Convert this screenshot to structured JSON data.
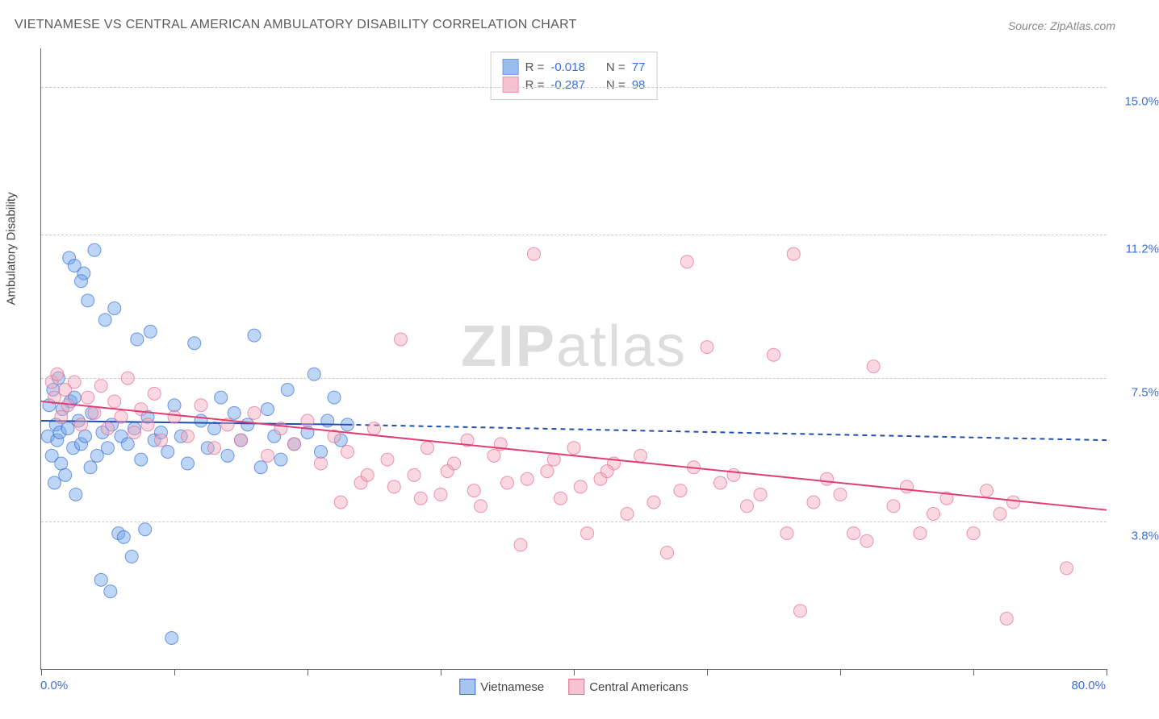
{
  "title": "VIETNAMESE VS CENTRAL AMERICAN AMBULATORY DISABILITY CORRELATION CHART",
  "source": "Source: ZipAtlas.com",
  "ylabel": "Ambulatory Disability",
  "watermark": {
    "part1": "ZIP",
    "part2": "atlas"
  },
  "chart": {
    "type": "scatter",
    "xlim": [
      0,
      80
    ],
    "ylim": [
      0,
      16
    ],
    "yticks": [
      {
        "v": 3.8,
        "label": "3.8%"
      },
      {
        "v": 7.5,
        "label": "7.5%"
      },
      {
        "v": 11.2,
        "label": "11.2%"
      },
      {
        "v": 15.0,
        "label": "15.0%"
      }
    ],
    "xticks": [
      0,
      10,
      20,
      30,
      40,
      50,
      60,
      70,
      80
    ],
    "x_left_label": "0.0%",
    "x_right_label": "80.0%",
    "background_color": "#ffffff",
    "grid_color": "#cccccc",
    "marker_radius": 8,
    "marker_opacity": 0.45,
    "series": [
      {
        "name": "Vietnamese",
        "color": "#6ea3e8",
        "stroke": "#3b6fd8",
        "R": "-0.018",
        "N": "77",
        "trend": {
          "x1": 0,
          "y1": 6.4,
          "x2": 23,
          "y2": 6.3,
          "dash_x2": 80,
          "dash_y2": 5.9,
          "color": "#1f4fb0",
          "width": 2
        },
        "points": [
          [
            0.5,
            6.0
          ],
          [
            0.6,
            6.8
          ],
          [
            0.8,
            5.5
          ],
          [
            0.9,
            7.2
          ],
          [
            1.0,
            4.8
          ],
          [
            1.1,
            6.3
          ],
          [
            1.2,
            5.9
          ],
          [
            1.3,
            7.5
          ],
          [
            1.4,
            6.1
          ],
          [
            1.5,
            5.3
          ],
          [
            1.6,
            6.7
          ],
          [
            1.8,
            5.0
          ],
          [
            2.0,
            6.2
          ],
          [
            2.1,
            10.6
          ],
          [
            2.2,
            6.9
          ],
          [
            2.4,
            5.7
          ],
          [
            2.5,
            7.0
          ],
          [
            2.6,
            4.5
          ],
          [
            2.8,
            6.4
          ],
          [
            3.0,
            5.8
          ],
          [
            3.2,
            10.2
          ],
          [
            3.3,
            6.0
          ],
          [
            3.5,
            9.5
          ],
          [
            3.7,
            5.2
          ],
          [
            3.8,
            6.6
          ],
          [
            4.0,
            10.8
          ],
          [
            4.2,
            5.5
          ],
          [
            4.5,
            2.3
          ],
          [
            4.6,
            6.1
          ],
          [
            4.8,
            9.0
          ],
          [
            5.0,
            5.7
          ],
          [
            5.2,
            2.0
          ],
          [
            5.3,
            6.3
          ],
          [
            5.5,
            9.3
          ],
          [
            5.8,
            3.5
          ],
          [
            6.0,
            6.0
          ],
          [
            6.2,
            3.4
          ],
          [
            6.5,
            5.8
          ],
          [
            6.8,
            2.9
          ],
          [
            7.0,
            6.2
          ],
          [
            7.2,
            8.5
          ],
          [
            7.5,
            5.4
          ],
          [
            7.8,
            3.6
          ],
          [
            8.0,
            6.5
          ],
          [
            8.2,
            8.7
          ],
          [
            8.5,
            5.9
          ],
          [
            9.0,
            6.1
          ],
          [
            9.5,
            5.6
          ],
          [
            9.8,
            0.8
          ],
          [
            10.0,
            6.8
          ],
          [
            10.5,
            6.0
          ],
          [
            11.0,
            5.3
          ],
          [
            11.5,
            8.4
          ],
          [
            12.0,
            6.4
          ],
          [
            12.5,
            5.7
          ],
          [
            13.0,
            6.2
          ],
          [
            13.5,
            7.0
          ],
          [
            14.0,
            5.5
          ],
          [
            14.5,
            6.6
          ],
          [
            15.0,
            5.9
          ],
          [
            15.5,
            6.3
          ],
          [
            16.0,
            8.6
          ],
          [
            16.5,
            5.2
          ],
          [
            17.0,
            6.7
          ],
          [
            17.5,
            6.0
          ],
          [
            18.0,
            5.4
          ],
          [
            18.5,
            7.2
          ],
          [
            19.0,
            5.8
          ],
          [
            20.0,
            6.1
          ],
          [
            20.5,
            7.6
          ],
          [
            21.0,
            5.6
          ],
          [
            21.5,
            6.4
          ],
          [
            22.0,
            7.0
          ],
          [
            22.5,
            5.9
          ],
          [
            23.0,
            6.3
          ],
          [
            2.5,
            10.4
          ],
          [
            3.0,
            10.0
          ]
        ]
      },
      {
        "name": "Central Americans",
        "color": "#f4a8bd",
        "stroke": "#e66b91",
        "R": "-0.287",
        "N": "98",
        "trend": {
          "x1": 0,
          "y1": 6.9,
          "x2": 80,
          "y2": 4.1,
          "color": "#e03e72",
          "width": 2
        },
        "points": [
          [
            0.8,
            7.4
          ],
          [
            1.0,
            7.0
          ],
          [
            1.2,
            7.6
          ],
          [
            1.5,
            6.5
          ],
          [
            1.8,
            7.2
          ],
          [
            2.0,
            6.8
          ],
          [
            2.5,
            7.4
          ],
          [
            3.0,
            6.3
          ],
          [
            3.5,
            7.0
          ],
          [
            4.0,
            6.6
          ],
          [
            4.5,
            7.3
          ],
          [
            5.0,
            6.2
          ],
          [
            5.5,
            6.9
          ],
          [
            6.0,
            6.5
          ],
          [
            6.5,
            7.5
          ],
          [
            7.0,
            6.1
          ],
          [
            7.5,
            6.7
          ],
          [
            8.0,
            6.3
          ],
          [
            8.5,
            7.1
          ],
          [
            9.0,
            5.9
          ],
          [
            10.0,
            6.5
          ],
          [
            11.0,
            6.0
          ],
          [
            12.0,
            6.8
          ],
          [
            13.0,
            5.7
          ],
          [
            14.0,
            6.3
          ],
          [
            15.0,
            5.9
          ],
          [
            16.0,
            6.6
          ],
          [
            17.0,
            5.5
          ],
          [
            18.0,
            6.2
          ],
          [
            19.0,
            5.8
          ],
          [
            20.0,
            6.4
          ],
          [
            21.0,
            5.3
          ],
          [
            22.0,
            6.0
          ],
          [
            23.0,
            5.6
          ],
          [
            24.0,
            4.8
          ],
          [
            25.0,
            6.2
          ],
          [
            26.0,
            5.4
          ],
          [
            27.0,
            8.5
          ],
          [
            28.0,
            5.0
          ],
          [
            29.0,
            5.7
          ],
          [
            30.0,
            4.5
          ],
          [
            31.0,
            5.3
          ],
          [
            32.0,
            5.9
          ],
          [
            33.0,
            4.2
          ],
          [
            34.0,
            5.5
          ],
          [
            35.0,
            4.8
          ],
          [
            36.0,
            3.2
          ],
          [
            37.0,
            10.7
          ],
          [
            38.0,
            5.1
          ],
          [
            39.0,
            4.4
          ],
          [
            40.0,
            5.7
          ],
          [
            41.0,
            3.5
          ],
          [
            42.0,
            4.9
          ],
          [
            43.0,
            5.3
          ],
          [
            44.0,
            4.0
          ],
          [
            45.0,
            5.5
          ],
          [
            46.0,
            4.3
          ],
          [
            47.0,
            3.0
          ],
          [
            48.0,
            4.6
          ],
          [
            48.5,
            10.5
          ],
          [
            49.0,
            5.2
          ],
          [
            50.0,
            8.3
          ],
          [
            51.0,
            4.8
          ],
          [
            52.0,
            5.0
          ],
          [
            53.0,
            4.2
          ],
          [
            54.0,
            4.5
          ],
          [
            55.0,
            8.1
          ],
          [
            56.0,
            3.5
          ],
          [
            56.5,
            10.7
          ],
          [
            57.0,
            1.5
          ],
          [
            58.0,
            4.3
          ],
          [
            59.0,
            4.9
          ],
          [
            60.0,
            4.5
          ],
          [
            61.0,
            3.5
          ],
          [
            62.0,
            3.3
          ],
          [
            62.5,
            7.8
          ],
          [
            64.0,
            4.2
          ],
          [
            65.0,
            4.7
          ],
          [
            66.0,
            3.5
          ],
          [
            67.0,
            4.0
          ],
          [
            68.0,
            4.4
          ],
          [
            70.0,
            3.5
          ],
          [
            71.0,
            4.6
          ],
          [
            72.0,
            4.0
          ],
          [
            72.5,
            1.3
          ],
          [
            73.0,
            4.3
          ],
          [
            77.0,
            2.6
          ],
          [
            22.5,
            4.3
          ],
          [
            24.5,
            5.0
          ],
          [
            26.5,
            4.7
          ],
          [
            28.5,
            4.4
          ],
          [
            30.5,
            5.1
          ],
          [
            32.5,
            4.6
          ],
          [
            34.5,
            5.8
          ],
          [
            36.5,
            4.9
          ],
          [
            38.5,
            5.4
          ],
          [
            40.5,
            4.7
          ],
          [
            42.5,
            5.1
          ]
        ]
      }
    ]
  },
  "legend_bottom": [
    {
      "label": "Vietnamese",
      "fill": "#a8c5ef",
      "stroke": "#3b6fd8"
    },
    {
      "label": "Central Americans",
      "fill": "#f7c3d3",
      "stroke": "#e66b91"
    }
  ]
}
